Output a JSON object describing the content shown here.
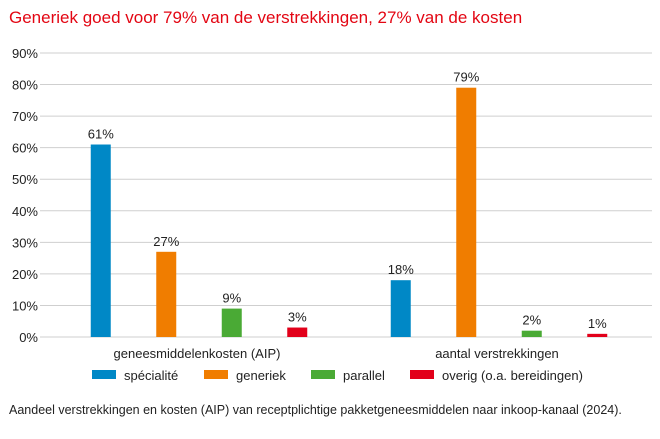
{
  "chart_data": {
    "type": "bar",
    "title": "Generiek goed voor 79% van de verstrekkingen, 27% van de kosten",
    "caption": "Aandeel verstrekkingen en kosten (AIP) van receptplichtige pakketgeneesmiddelen naar inkoop-kanaal (2024).",
    "categories": [
      "geneesmiddelenkosten (AIP)",
      "aantal verstrekkingen"
    ],
    "series": [
      {
        "name": "spécialité",
        "color": "#0088c6",
        "values": [
          61,
          18
        ]
      },
      {
        "name": "generiek",
        "color": "#f07d00",
        "values": [
          27,
          79
        ]
      },
      {
        "name": "parallel",
        "color": "#4aaa35",
        "values": [
          9,
          2
        ]
      },
      {
        "name": "overig (o.a. bereidingen)",
        "color": "#e2001a",
        "values": [
          3,
          1
        ]
      }
    ],
    "ylim": [
      0,
      90
    ],
    "yticks": [
      0,
      10,
      20,
      30,
      40,
      50,
      60,
      70,
      80,
      90
    ],
    "ytick_suffix": "%",
    "grid": true,
    "legend": "bottom",
    "xlabel": "",
    "ylabel": ""
  }
}
